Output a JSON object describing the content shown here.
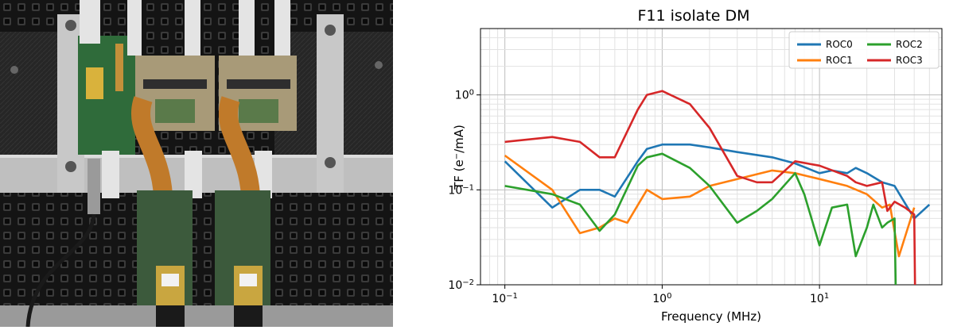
{
  "photo": {
    "description_icon": "electronics-test-board-photo-icon"
  },
  "chart_data": {
    "type": "line",
    "title": "F11 isolate DM",
    "xlabel": "Frequency (MHz)",
    "ylabel": "TF (e$^-$/mA)",
    "ylabel_main": "TF (e",
    "ylabel_sup": "−",
    "ylabel_end": "/mA)",
    "xscale": "log",
    "yscale": "log",
    "xlim": [
      0.07,
      60
    ],
    "ylim": [
      0.01,
      5
    ],
    "grid": true,
    "legend_placement": "top-right",
    "x_ticks": [
      {
        "value": 0.1,
        "base": "10",
        "exp": "−1"
      },
      {
        "value": 1,
        "base": "10",
        "exp": "0"
      },
      {
        "value": 10,
        "base": "10",
        "exp": "1"
      }
    ],
    "y_ticks": [
      {
        "value": 0.01,
        "base": "10",
        "exp": "−2"
      },
      {
        "value": 0.1,
        "base": "10",
        "exp": "−1"
      },
      {
        "value": 1,
        "base": "10",
        "exp": "0"
      }
    ],
    "series": [
      {
        "name": "ROC0",
        "color": "#1f77b4",
        "x": [
          0.1,
          0.2,
          0.3,
          0.4,
          0.5,
          0.7,
          0.8,
          1.0,
          1.5,
          2,
          3,
          5,
          7,
          10,
          12,
          15,
          17,
          20,
          25,
          30,
          40,
          50
        ],
        "y": [
          0.2,
          0.065,
          0.1,
          0.1,
          0.085,
          0.2,
          0.27,
          0.3,
          0.3,
          0.28,
          0.25,
          0.22,
          0.19,
          0.15,
          0.16,
          0.15,
          0.17,
          0.15,
          0.12,
          0.11,
          0.05,
          0.07
        ]
      },
      {
        "name": "ROC1",
        "color": "#ff7f0e",
        "x": [
          0.1,
          0.2,
          0.3,
          0.4,
          0.5,
          0.6,
          0.8,
          1.0,
          1.5,
          2,
          3,
          5,
          7,
          10,
          15,
          20,
          25,
          28,
          32,
          40
        ],
        "y": [
          0.23,
          0.1,
          0.035,
          0.04,
          0.05,
          0.045,
          0.1,
          0.08,
          0.085,
          0.11,
          0.13,
          0.16,
          0.15,
          0.13,
          0.11,
          0.09,
          0.065,
          0.07,
          0.02,
          0.065
        ]
      },
      {
        "name": "ROC2",
        "color": "#2ca02c",
        "x": [
          0.1,
          0.2,
          0.3,
          0.4,
          0.5,
          0.7,
          0.8,
          1.0,
          1.5,
          2,
          3,
          4,
          5,
          7,
          8,
          10,
          12,
          15,
          17,
          20,
          22,
          25,
          27,
          30,
          30.5
        ],
        "y": [
          0.11,
          0.09,
          0.07,
          0.037,
          0.055,
          0.18,
          0.22,
          0.24,
          0.17,
          0.11,
          0.045,
          0.06,
          0.08,
          0.15,
          0.09,
          0.026,
          0.065,
          0.07,
          0.02,
          0.04,
          0.07,
          0.04,
          0.045,
          0.05,
          0.0095
        ]
      },
      {
        "name": "ROC3",
        "color": "#d62728",
        "x": [
          0.1,
          0.2,
          0.3,
          0.4,
          0.5,
          0.7,
          0.8,
          1.0,
          1.5,
          2,
          3,
          4,
          5,
          7,
          10,
          15,
          17,
          20,
          25,
          27,
          30,
          35,
          40,
          40.5
        ],
        "y": [
          0.32,
          0.36,
          0.32,
          0.22,
          0.22,
          0.7,
          1.0,
          1.1,
          0.8,
          0.45,
          0.14,
          0.12,
          0.12,
          0.2,
          0.18,
          0.14,
          0.12,
          0.11,
          0.12,
          0.06,
          0.075,
          0.065,
          0.055,
          0.0095
        ]
      }
    ]
  }
}
